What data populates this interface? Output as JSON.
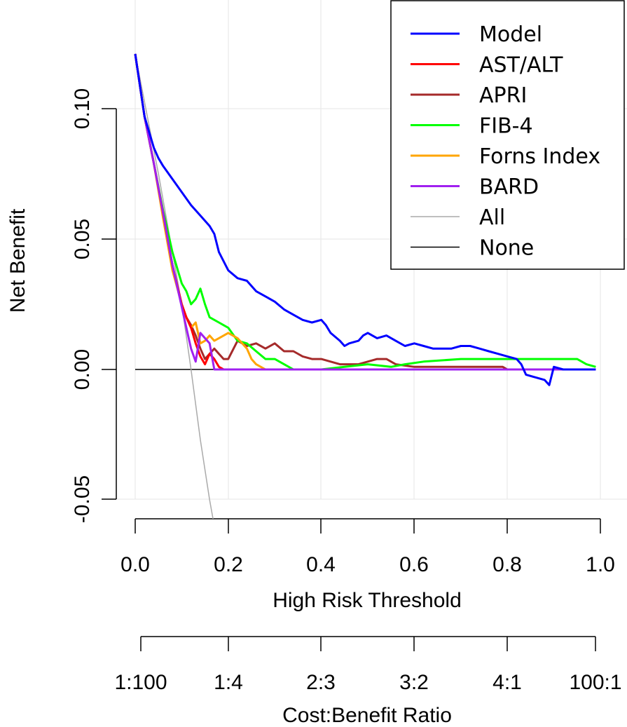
{
  "chart_data": {
    "type": "line",
    "title": "",
    "xlabel": "High Risk Threshold",
    "ylabel": "Net Benefit",
    "x_ticks": [
      "0.0",
      "0.2",
      "0.4",
      "0.6",
      "0.8",
      "1.0"
    ],
    "y_ticks": [
      "-0.05",
      "0.00",
      "0.05",
      "0.10"
    ],
    "xlim": [
      0,
      1
    ],
    "ylim": [
      -0.06,
      0.12
    ],
    "grid": true,
    "legend_position": "top-right",
    "secondary_axis": {
      "label": "Cost:Benefit Ratio",
      "ticks": [
        "1:100",
        "1:4",
        "2:3",
        "3:2",
        "4:1",
        "100:1"
      ]
    },
    "series": [
      {
        "name": "Model",
        "color": "#0000ff",
        "x": [
          0.0,
          0.02,
          0.04,
          0.05,
          0.06,
          0.08,
          0.1,
          0.12,
          0.14,
          0.16,
          0.17,
          0.18,
          0.2,
          0.22,
          0.24,
          0.26,
          0.28,
          0.3,
          0.32,
          0.34,
          0.36,
          0.38,
          0.4,
          0.41,
          0.42,
          0.44,
          0.45,
          0.46,
          0.48,
          0.49,
          0.5,
          0.52,
          0.54,
          0.56,
          0.58,
          0.6,
          0.62,
          0.64,
          0.66,
          0.68,
          0.7,
          0.72,
          0.74,
          0.76,
          0.78,
          0.8,
          0.82,
          0.83,
          0.84,
          0.86,
          0.88,
          0.89,
          0.9,
          0.92,
          0.95,
          0.99
        ],
        "y": [
          0.121,
          0.097,
          0.085,
          0.081,
          0.078,
          0.073,
          0.068,
          0.063,
          0.059,
          0.055,
          0.052,
          0.045,
          0.038,
          0.035,
          0.034,
          0.03,
          0.028,
          0.026,
          0.023,
          0.021,
          0.019,
          0.018,
          0.019,
          0.017,
          0.014,
          0.011,
          0.009,
          0.01,
          0.011,
          0.013,
          0.014,
          0.012,
          0.013,
          0.011,
          0.009,
          0.01,
          0.009,
          0.008,
          0.008,
          0.008,
          0.009,
          0.009,
          0.008,
          0.007,
          0.006,
          0.005,
          0.004,
          0.002,
          -0.002,
          -0.003,
          -0.004,
          -0.006,
          0.001,
          0.0,
          0.0,
          0.0
        ]
      },
      {
        "name": "AST/ALT",
        "color": "#ff0000",
        "x": [
          0.0,
          0.02,
          0.04,
          0.06,
          0.08,
          0.1,
          0.11,
          0.12,
          0.13,
          0.14,
          0.15,
          0.16,
          0.17,
          0.18,
          0.19,
          0.25,
          0.99
        ],
        "y": [
          0.121,
          0.097,
          0.079,
          0.06,
          0.04,
          0.025,
          0.02,
          0.016,
          0.01,
          0.005,
          0.002,
          0.006,
          0.004,
          0.001,
          0.0,
          0.0,
          0.0
        ]
      },
      {
        "name": "APRI",
        "color": "#a52a2a",
        "x": [
          0.0,
          0.02,
          0.04,
          0.06,
          0.08,
          0.1,
          0.11,
          0.12,
          0.13,
          0.14,
          0.15,
          0.16,
          0.17,
          0.18,
          0.19,
          0.2,
          0.22,
          0.24,
          0.26,
          0.28,
          0.3,
          0.32,
          0.34,
          0.36,
          0.38,
          0.4,
          0.42,
          0.44,
          0.46,
          0.48,
          0.5,
          0.52,
          0.54,
          0.56,
          0.6,
          0.65,
          0.7,
          0.75,
          0.79,
          0.8,
          0.99
        ],
        "y": [
          0.121,
          0.097,
          0.079,
          0.06,
          0.04,
          0.025,
          0.02,
          0.017,
          0.013,
          0.008,
          0.004,
          0.006,
          0.008,
          0.006,
          0.004,
          0.004,
          0.011,
          0.009,
          0.01,
          0.008,
          0.01,
          0.007,
          0.007,
          0.005,
          0.004,
          0.004,
          0.003,
          0.002,
          0.002,
          0.002,
          0.003,
          0.004,
          0.004,
          0.002,
          0.001,
          0.001,
          0.001,
          0.001,
          0.001,
          0.0,
          0.0
        ]
      },
      {
        "name": "FIB-4",
        "color": "#00ff00",
        "x": [
          0.0,
          0.02,
          0.04,
          0.06,
          0.08,
          0.1,
          0.11,
          0.12,
          0.13,
          0.14,
          0.15,
          0.16,
          0.17,
          0.18,
          0.19,
          0.2,
          0.22,
          0.24,
          0.26,
          0.28,
          0.3,
          0.32,
          0.34,
          0.36,
          0.4,
          0.45,
          0.5,
          0.55,
          0.58,
          0.62,
          0.7,
          0.75,
          0.8,
          0.85,
          0.9,
          0.95,
          0.97,
          0.99
        ],
        "y": [
          0.121,
          0.097,
          0.079,
          0.061,
          0.045,
          0.033,
          0.03,
          0.025,
          0.027,
          0.031,
          0.025,
          0.02,
          0.019,
          0.018,
          0.017,
          0.016,
          0.011,
          0.01,
          0.007,
          0.004,
          0.004,
          0.002,
          0.0,
          0.0,
          0.0,
          0.001,
          0.002,
          0.001,
          0.002,
          0.003,
          0.004,
          0.004,
          0.004,
          0.004,
          0.004,
          0.004,
          0.002,
          0.001
        ]
      },
      {
        "name": "Forns Index",
        "color": "#ffa500",
        "x": [
          0.0,
          0.02,
          0.04,
          0.06,
          0.08,
          0.1,
          0.11,
          0.12,
          0.13,
          0.14,
          0.15,
          0.16,
          0.17,
          0.18,
          0.2,
          0.22,
          0.24,
          0.25,
          0.26,
          0.27,
          0.28,
          0.3,
          0.99
        ],
        "y": [
          0.121,
          0.097,
          0.079,
          0.058,
          0.038,
          0.025,
          0.02,
          0.016,
          0.018,
          0.01,
          0.011,
          0.013,
          0.011,
          0.012,
          0.014,
          0.012,
          0.008,
          0.004,
          0.002,
          0.001,
          0.0,
          0.0,
          0.0
        ]
      },
      {
        "name": "BARD",
        "color": "#a020f0",
        "x": [
          0.0,
          0.02,
          0.04,
          0.06,
          0.08,
          0.1,
          0.11,
          0.12,
          0.13,
          0.14,
          0.15,
          0.16,
          0.17,
          0.18,
          0.99
        ],
        "y": [
          0.121,
          0.097,
          0.079,
          0.06,
          0.04,
          0.024,
          0.016,
          0.008,
          0.003,
          0.014,
          0.012,
          0.01,
          0.0,
          0.0,
          0.0
        ]
      },
      {
        "name": "All",
        "color": "#aaaaaa",
        "x": [
          0.0,
          0.05,
          0.1,
          0.12,
          0.14,
          0.16,
          0.17
        ],
        "y": [
          0.121,
          0.075,
          0.025,
          0.0,
          -0.027,
          -0.05,
          -0.06
        ]
      },
      {
        "name": "None",
        "color": "#000000",
        "x": [
          0.0,
          0.99
        ],
        "y": [
          0.0,
          0.0
        ]
      }
    ]
  }
}
